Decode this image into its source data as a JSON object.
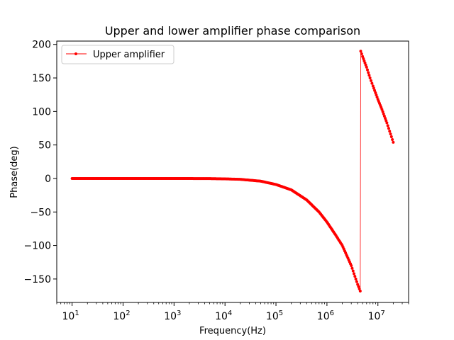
{
  "chart_data": {
    "type": "line",
    "title": "Upper and lower amplifier phase comparison",
    "xlabel": "Frequency(Hz)",
    "ylabel": "Phase(deg)",
    "xscale": "log",
    "xlim": [
      5,
      40000000
    ],
    "ylim": [
      -185,
      205
    ],
    "grid": false,
    "legend": {
      "placement": "top-left",
      "entries": [
        "Upper amplifier"
      ]
    },
    "x_ticks": [
      {
        "value": 10,
        "base": "10",
        "exp": "1"
      },
      {
        "value": 100,
        "base": "10",
        "exp": "2"
      },
      {
        "value": 1000,
        "base": "10",
        "exp": "3"
      },
      {
        "value": 10000,
        "base": "10",
        "exp": "4"
      },
      {
        "value": 100000,
        "base": "10",
        "exp": "5"
      },
      {
        "value": 1000000,
        "base": "10",
        "exp": "6"
      },
      {
        "value": 10000000,
        "base": "10",
        "exp": "7"
      }
    ],
    "y_ticks": [
      {
        "value": 200,
        "label": "200"
      },
      {
        "value": 150,
        "label": "150"
      },
      {
        "value": 100,
        "label": "100"
      },
      {
        "value": 50,
        "label": "50"
      },
      {
        "value": 0,
        "label": "0"
      },
      {
        "value": -50,
        "label": "−50"
      },
      {
        "value": -100,
        "label": "−100"
      },
      {
        "value": -150,
        "label": "−150"
      }
    ],
    "series": [
      {
        "name": "Upper amplifier",
        "color": "#ff0000",
        "marker": "dot",
        "x": [
          10,
          100,
          1000,
          5000,
          10000,
          20000,
          50000,
          100000,
          200000,
          400000,
          700000,
          1000000,
          1500000,
          2000000,
          3000000,
          4000000,
          4500000,
          4600000,
          5000000,
          6000000,
          7000000,
          8000000,
          10000000,
          12000000,
          15000000,
          20000000
        ],
        "y": [
          0,
          0,
          0,
          -0.2,
          -0.6,
          -1.3,
          -4,
          -9,
          -17,
          -32,
          -50,
          -65,
          -85,
          -100,
          -130,
          -158,
          -168,
          190,
          182,
          166,
          150,
          138,
          118,
          103,
          83,
          54
        ]
      }
    ]
  }
}
